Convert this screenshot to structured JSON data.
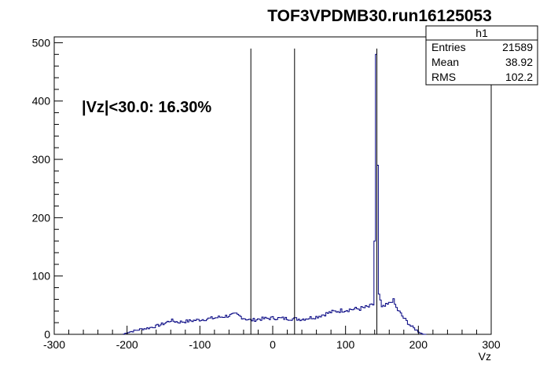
{
  "chart_data": {
    "type": "histogram",
    "title": "TOF3VPDMB30.run16125053",
    "xlabel": "Vz",
    "ylabel": "",
    "xlim": [
      -300,
      300
    ],
    "ylim": [
      0,
      510
    ],
    "x_ticks": [
      -300,
      -200,
      -100,
      0,
      100,
      200,
      300
    ],
    "y_ticks": [
      0,
      100,
      200,
      300,
      400,
      500
    ],
    "grid": false,
    "line_color": "#000080",
    "cut_lines": [
      -30,
      30,
      143
    ],
    "cut_line_top": 490,
    "annotation": "|Vz|<30.0: 16.30%",
    "stats": {
      "name": "h1",
      "rows": [
        {
          "label": "Entries",
          "value": "21589"
        },
        {
          "label": "Mean",
          "value": "38.92"
        },
        {
          "label": "RMS",
          "value": "102.2"
        }
      ]
    },
    "profile": {
      "bin_width": 2,
      "points": [
        [
          -205,
          0
        ],
        [
          -200,
          3
        ],
        [
          -190,
          6
        ],
        [
          -180,
          9
        ],
        [
          -170,
          11
        ],
        [
          -160,
          14
        ],
        [
          -150,
          18
        ],
        [
          -143,
          22
        ],
        [
          -140,
          24
        ],
        [
          -130,
          21
        ],
        [
          -120,
          22
        ],
        [
          -100,
          25
        ],
        [
          -80,
          28
        ],
        [
          -60,
          32
        ],
        [
          -50,
          34
        ],
        [
          -40,
          28
        ],
        [
          -30,
          24
        ],
        [
          -20,
          26
        ],
        [
          0,
          28
        ],
        [
          20,
          27
        ],
        [
          40,
          26
        ],
        [
          60,
          30
        ],
        [
          80,
          38
        ],
        [
          100,
          42
        ],
        [
          120,
          44
        ],
        [
          135,
          48
        ],
        [
          139,
          52
        ],
        [
          140,
          160
        ],
        [
          141,
          330
        ],
        [
          142,
          480
        ],
        [
          143,
          470
        ],
        [
          144,
          290
        ],
        [
          145,
          75
        ],
        [
          150,
          45
        ],
        [
          160,
          52
        ],
        [
          165,
          60
        ],
        [
          170,
          45
        ],
        [
          180,
          28
        ],
        [
          190,
          14
        ],
        [
          200,
          5
        ],
        [
          205,
          1
        ],
        [
          210,
          0
        ]
      ]
    }
  }
}
